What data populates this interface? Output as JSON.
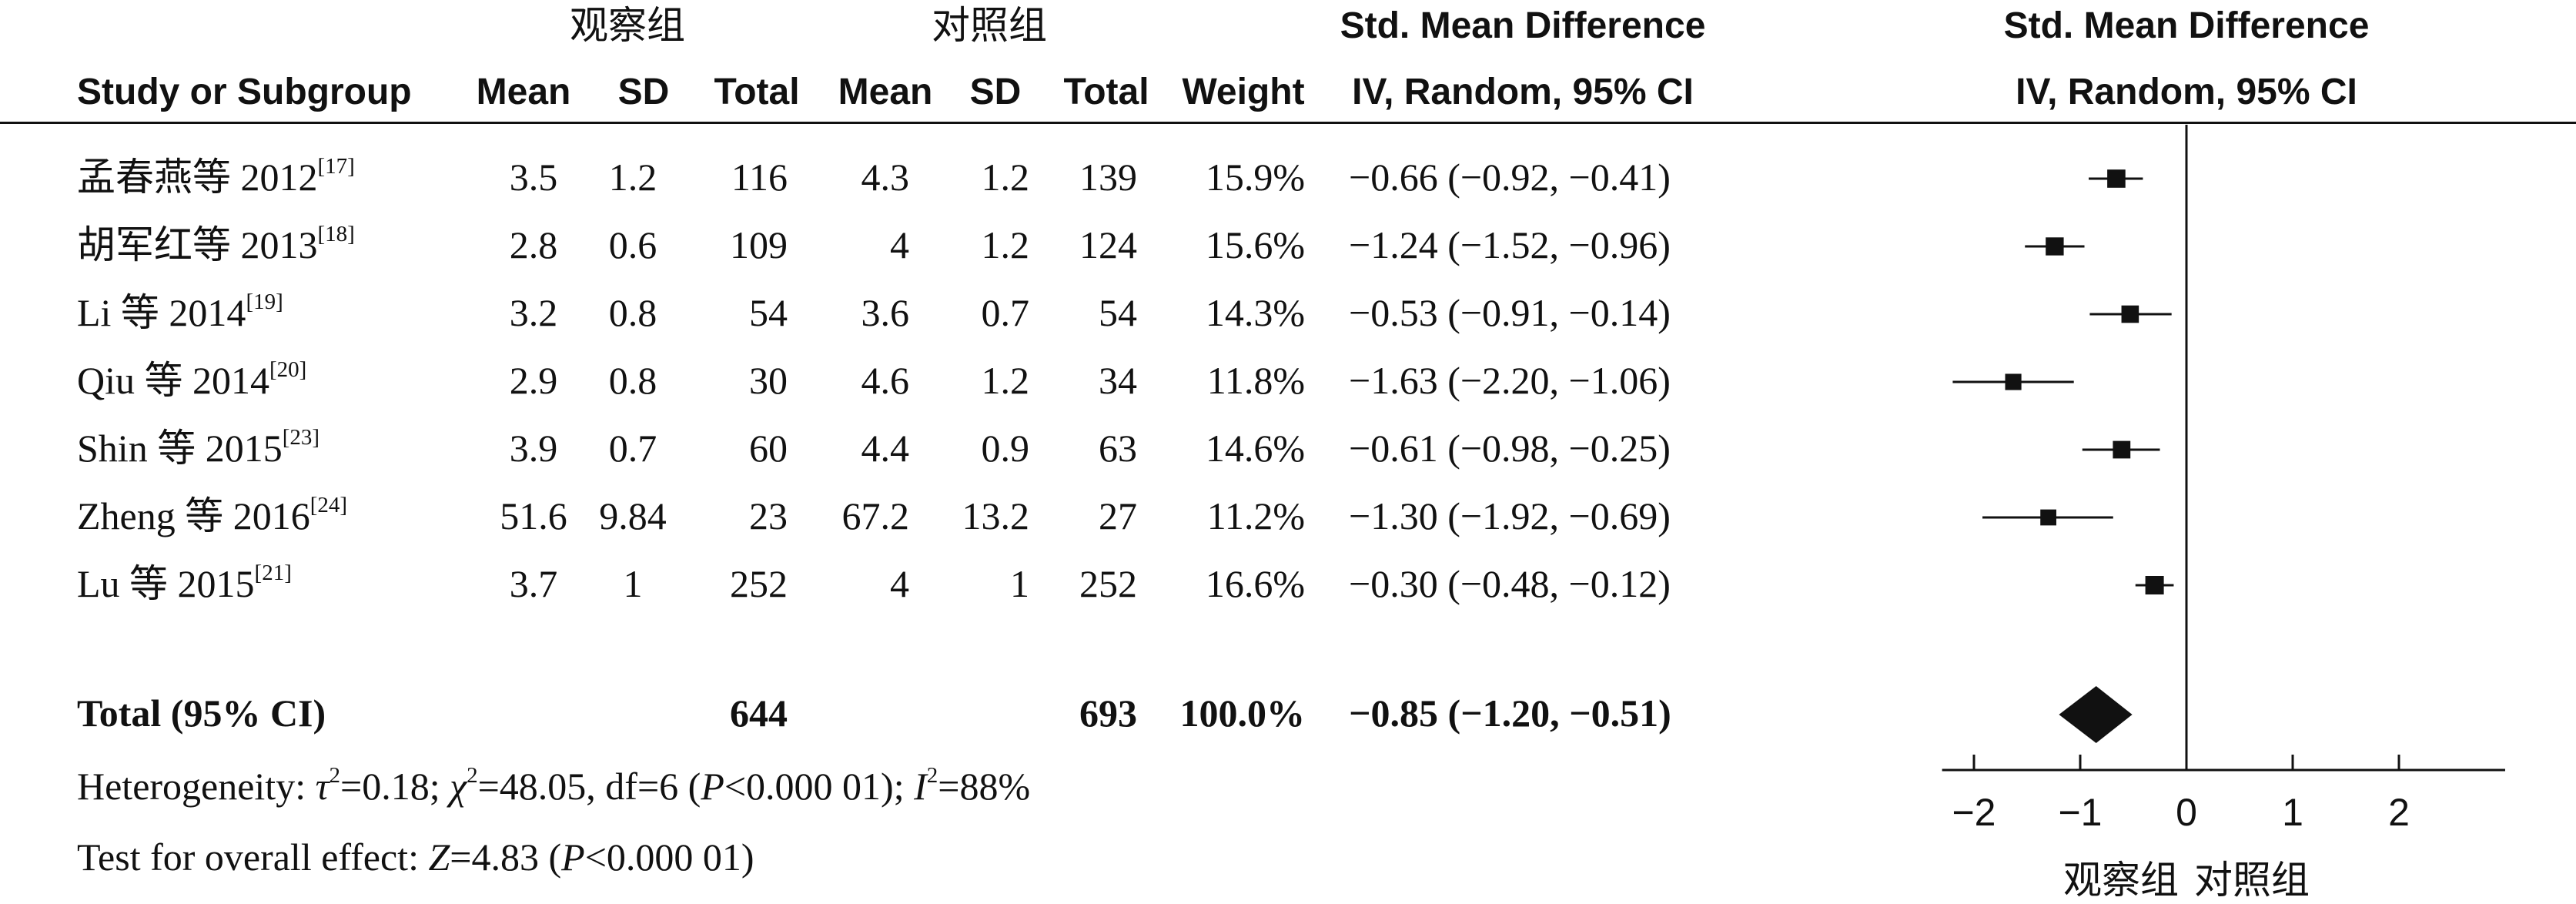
{
  "group_labels": {
    "experimental": "观察组",
    "control": "对照组"
  },
  "headers": {
    "study": "Study or Subgroup",
    "mean": "Mean",
    "sd": "SD",
    "total": "Total",
    "weight": "Weight",
    "effect_title": "Std. Mean Difference",
    "effect_method": "IV, Random, 95% CI",
    "plot_title": "Std. Mean Difference",
    "plot_method": "IV, Random, 95% CI"
  },
  "studies": [
    {
      "name": "孟春燕等 2012",
      "ref": "[17]",
      "e_mean": "3.5",
      "e_sd": "1.2",
      "e_total": "116",
      "c_mean": "4.3",
      "c_sd": "1.2",
      "c_total": "139",
      "weight": "15.9%",
      "ci_text": "−0.66 (−0.92, −0.41)",
      "est": -0.66,
      "lo": -0.92,
      "hi": -0.41,
      "w": 15.9
    },
    {
      "name": "胡军红等 2013",
      "ref": "[18]",
      "e_mean": "2.8",
      "e_sd": "0.6",
      "e_total": "109",
      "c_mean": "4",
      "c_sd": "1.2",
      "c_total": "124",
      "weight": "15.6%",
      "ci_text": "−1.24 (−1.52, −0.96)",
      "est": -1.24,
      "lo": -1.52,
      "hi": -0.96,
      "w": 15.6
    },
    {
      "name": "Li 等 2014",
      "ref": "[19]",
      "e_mean": "3.2",
      "e_sd": "0.8",
      "e_total": "54",
      "c_mean": "3.6",
      "c_sd": "0.7",
      "c_total": "54",
      "weight": "14.3%",
      "ci_text": "−0.53 (−0.91, −0.14)",
      "est": -0.53,
      "lo": -0.91,
      "hi": -0.14,
      "w": 14.3
    },
    {
      "name": "Qiu 等 2014",
      "ref": "[20]",
      "e_mean": "2.9",
      "e_sd": "0.8",
      "e_total": "30",
      "c_mean": "4.6",
      "c_sd": "1.2",
      "c_total": "34",
      "weight": "11.8%",
      "ci_text": "−1.63 (−2.20, −1.06)",
      "est": -1.63,
      "lo": -2.2,
      "hi": -1.06,
      "w": 11.8
    },
    {
      "name": "Shin 等 2015",
      "ref": "[23]",
      "e_mean": "3.9",
      "e_sd": "0.7",
      "e_total": "60",
      "c_mean": "4.4",
      "c_sd": "0.9",
      "c_total": "63",
      "weight": "14.6%",
      "ci_text": "−0.61 (−0.98, −0.25)",
      "est": -0.61,
      "lo": -0.98,
      "hi": -0.25,
      "w": 14.6
    },
    {
      "name": "Zheng 等 2016",
      "ref": "[24]",
      "e_mean": "51.6",
      "e_sd": "9.84",
      "e_total": "23",
      "c_mean": "67.2",
      "c_sd": "13.2",
      "c_total": "27",
      "weight": "11.2%",
      "ci_text": "−1.30 (−1.92, −0.69)",
      "est": -1.3,
      "lo": -1.92,
      "hi": -0.69,
      "w": 11.2
    },
    {
      "name": "Lu 等 2015",
      "ref": "[21]",
      "e_mean": "3.7",
      "e_sd": "1",
      "e_total": "252",
      "c_mean": "4",
      "c_sd": "1",
      "c_total": "252",
      "weight": "16.6%",
      "ci_text": "−0.30 (−0.48, −0.12)",
      "est": -0.3,
      "lo": -0.48,
      "hi": -0.12,
      "w": 16.6
    }
  ],
  "total": {
    "label": "Total (95% CI)",
    "e_total": "644",
    "c_total": "693",
    "weight": "100.0%",
    "ci_text": "−0.85 (−1.20, −0.51)",
    "est": -0.85,
    "lo": -1.2,
    "hi": -0.51
  },
  "footnotes": {
    "heterogeneity": "Heterogeneity: τ²=0.18; χ²=48.05, df=6 (P<0.000 01); I²=88%",
    "overall_effect": "Test for overall effect: Z=4.83 (P<0.000 01)"
  },
  "axis": {
    "ticks": [
      -2,
      -1,
      0,
      1,
      2
    ],
    "tick_labels": [
      "−2",
      "−1",
      "0",
      "1",
      "2"
    ],
    "favours_left": "观察组",
    "favours_right": "对照组"
  },
  "chart_data": {
    "type": "forest",
    "title": "Std. Mean Difference",
    "subtitle": "IV, Random, 95% CI",
    "xlim": [
      -2.3,
      3.0
    ],
    "null_line": 0,
    "categories": [
      "孟春燕等 2012",
      "胡军红等 2013",
      "Li 等 2014",
      "Qiu 等 2014",
      "Shin 等 2015",
      "Zheng 等 2016",
      "Lu 等 2015",
      "Total (95% CI)"
    ],
    "estimates": [
      -0.66,
      -1.24,
      -0.53,
      -1.63,
      -0.61,
      -1.3,
      -0.3,
      -0.85
    ],
    "ci_lower": [
      -0.92,
      -1.52,
      -0.91,
      -2.2,
      -0.98,
      -1.92,
      -0.48,
      -1.2
    ],
    "ci_upper": [
      -0.41,
      -0.96,
      -0.14,
      -1.06,
      -0.25,
      -0.69,
      -0.12,
      -0.51
    ],
    "weights_percent": [
      15.9,
      15.6,
      14.3,
      11.8,
      14.6,
      11.2,
      16.6,
      100.0
    ],
    "pooled_marker": "diamond",
    "favours": [
      "观察组",
      "对照组"
    ]
  },
  "colors": {
    "ink": "#111111",
    "background": "#ffffff"
  }
}
